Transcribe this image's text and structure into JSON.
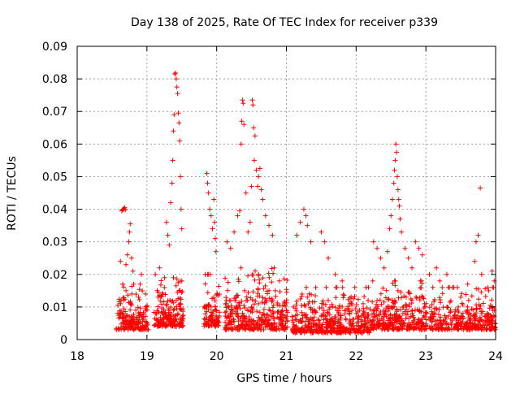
{
  "chart_data": {
    "type": "scatter",
    "title": "Day 138 of 2025, Rate Of TEC Index for receiver p339",
    "xlabel": "GPS time / hours",
    "ylabel": "ROTI / TECUs",
    "xlim": [
      18,
      24
    ],
    "ylim": [
      0,
      0.09
    ],
    "x_ticks": [
      18,
      19,
      20,
      21,
      22,
      23,
      24
    ],
    "x_tick_labels": [
      "18",
      "19",
      "20",
      "21",
      "22",
      "23",
      "24"
    ],
    "y_ticks": [
      0,
      0.01,
      0.02,
      0.03,
      0.04,
      0.05,
      0.06,
      0.07,
      0.08,
      0.09
    ],
    "y_tick_labels": [
      "0",
      "0.01",
      "0.02",
      "0.03",
      "0.04",
      "0.05",
      "0.06",
      "0.07",
      "0.08",
      "0.09"
    ],
    "grid": true,
    "marker": "+",
    "series": [
      {
        "name": "ROTI",
        "color": "#ff0000",
        "points": [
          [
            18.62,
            0.024
          ],
          [
            18.64,
            0.0395
          ],
          [
            18.65,
            0.0398
          ],
          [
            18.66,
            0.04
          ],
          [
            18.67,
            0.0402
          ],
          [
            18.68,
            0.0405
          ],
          [
            18.69,
            0.0398
          ],
          [
            18.7,
            0.023
          ],
          [
            18.72,
            0.026
          ],
          [
            18.74,
            0.03
          ],
          [
            18.75,
            0.033
          ],
          [
            18.76,
            0.0355
          ],
          [
            18.78,
            0.025
          ],
          [
            18.8,
            0.021
          ],
          [
            18.63,
            0.012
          ],
          [
            18.66,
            0.008
          ],
          [
            18.7,
            0.015
          ],
          [
            18.73,
            0.006
          ],
          [
            18.77,
            0.011
          ],
          [
            18.81,
            0.017
          ],
          [
            18.84,
            0.009
          ],
          [
            18.88,
            0.013
          ],
          [
            18.92,
            0.02
          ],
          [
            18.95,
            0.007
          ],
          [
            18.98,
            0.014
          ],
          [
            19.0,
            0.01
          ],
          [
            19.12,
            0.02
          ],
          [
            19.16,
            0.013
          ],
          [
            19.18,
            0.022
          ],
          [
            19.22,
            0.008
          ],
          [
            19.25,
            0.016
          ],
          [
            19.28,
            0.036
          ],
          [
            19.3,
            0.032
          ],
          [
            19.32,
            0.029
          ],
          [
            19.34,
            0.042
          ],
          [
            19.36,
            0.048
          ],
          [
            19.37,
            0.055
          ],
          [
            19.38,
            0.064
          ],
          [
            19.39,
            0.069
          ],
          [
            19.4,
            0.0815
          ],
          [
            19.41,
            0.0818
          ],
          [
            19.42,
            0.08
          ],
          [
            19.43,
            0.0775
          ],
          [
            19.44,
            0.0755
          ],
          [
            19.45,
            0.0695
          ],
          [
            19.46,
            0.0665
          ],
          [
            19.47,
            0.061
          ],
          [
            19.48,
            0.05
          ],
          [
            19.49,
            0.04
          ],
          [
            19.5,
            0.034
          ],
          [
            19.46,
            0.015
          ],
          [
            19.38,
            0.009
          ],
          [
            19.42,
            0.012
          ],
          [
            19.48,
            0.006
          ],
          [
            19.5,
            0.018
          ],
          [
            19.86,
            0.051
          ],
          [
            19.87,
            0.048
          ],
          [
            19.88,
            0.045
          ],
          [
            19.9,
            0.04
          ],
          [
            19.92,
            0.038
          ],
          [
            19.94,
            0.034
          ],
          [
            19.96,
            0.043
          ],
          [
            19.97,
            0.036
          ],
          [
            19.98,
            0.031
          ],
          [
            19.99,
            0.027
          ],
          [
            19.88,
            0.02
          ],
          [
            19.92,
            0.01
          ],
          [
            19.96,
            0.006
          ],
          [
            20.15,
            0.03
          ],
          [
            20.2,
            0.028
          ],
          [
            20.25,
            0.033
          ],
          [
            20.3,
            0.038
          ],
          [
            20.33,
            0.0395
          ],
          [
            20.35,
            0.06
          ],
          [
            20.36,
            0.067
          ],
          [
            20.37,
            0.0735
          ],
          [
            20.38,
            0.0725
          ],
          [
            20.39,
            0.066
          ],
          [
            20.42,
            0.045
          ],
          [
            20.45,
            0.033
          ],
          [
            20.48,
            0.036
          ],
          [
            20.5,
            0.047
          ],
          [
            20.51,
            0.0735
          ],
          [
            20.52,
            0.072
          ],
          [
            20.53,
            0.065
          ],
          [
            20.54,
            0.055
          ],
          [
            20.55,
            0.0625
          ],
          [
            20.57,
            0.052
          ],
          [
            20.59,
            0.047
          ],
          [
            20.6,
            0.05
          ],
          [
            20.62,
            0.0525
          ],
          [
            20.64,
            0.046
          ],
          [
            20.66,
            0.043
          ],
          [
            20.7,
            0.038
          ],
          [
            20.75,
            0.035
          ],
          [
            20.8,
            0.032
          ],
          [
            20.2,
            0.012
          ],
          [
            20.3,
            0.008
          ],
          [
            20.4,
            0.015
          ],
          [
            20.5,
            0.01
          ],
          [
            20.6,
            0.02
          ],
          [
            20.7,
            0.006
          ],
          [
            20.8,
            0.012
          ],
          [
            20.9,
            0.018
          ],
          [
            21.0,
            0.009
          ],
          [
            21.15,
            0.032
          ],
          [
            21.2,
            0.036
          ],
          [
            21.25,
            0.04
          ],
          [
            21.28,
            0.038
          ],
          [
            21.3,
            0.035
          ],
          [
            21.35,
            0.03
          ],
          [
            21.5,
            0.033
          ],
          [
            21.55,
            0.03
          ],
          [
            21.6,
            0.025
          ],
          [
            21.7,
            0.02
          ],
          [
            21.8,
            0.018
          ],
          [
            21.1,
            0.01
          ],
          [
            21.2,
            0.006
          ],
          [
            21.3,
            0.013
          ],
          [
            21.4,
            0.009
          ],
          [
            21.5,
            0.004
          ],
          [
            21.6,
            0.012
          ],
          [
            21.7,
            0.007
          ],
          [
            21.8,
            0.01
          ],
          [
            21.9,
            0.005
          ],
          [
            22.0,
            0.008
          ],
          [
            22.1,
            0.011
          ],
          [
            22.2,
            0.006
          ],
          [
            22.25,
            0.03
          ],
          [
            22.3,
            0.028
          ],
          [
            22.35,
            0.025
          ],
          [
            22.4,
            0.022
          ],
          [
            22.45,
            0.027
          ],
          [
            22.48,
            0.034
          ],
          [
            22.5,
            0.038
          ],
          [
            22.52,
            0.043
          ],
          [
            22.54,
            0.048
          ],
          [
            22.55,
            0.052
          ],
          [
            22.56,
            0.055
          ],
          [
            22.57,
            0.06
          ],
          [
            22.58,
            0.0575
          ],
          [
            22.59,
            0.05
          ],
          [
            22.6,
            0.046
          ],
          [
            22.61,
            0.043
          ],
          [
            22.62,
            0.041
          ],
          [
            22.63,
            0.037
          ],
          [
            22.65,
            0.033
          ],
          [
            22.7,
            0.028
          ],
          [
            22.75,
            0.025
          ],
          [
            22.8,
            0.022
          ],
          [
            22.85,
            0.03
          ],
          [
            22.9,
            0.028
          ],
          [
            22.95,
            0.026
          ],
          [
            22.3,
            0.012
          ],
          [
            22.4,
            0.007
          ],
          [
            22.5,
            0.01
          ],
          [
            22.6,
            0.015
          ],
          [
            22.7,
            0.008
          ],
          [
            22.8,
            0.012
          ],
          [
            22.9,
            0.006
          ],
          [
            22.98,
            0.011
          ],
          [
            23.05,
            0.02
          ],
          [
            23.1,
            0.016
          ],
          [
            23.15,
            0.022
          ],
          [
            23.2,
            0.018
          ],
          [
            23.3,
            0.02
          ],
          [
            23.4,
            0.016
          ],
          [
            23.5,
            0.013
          ],
          [
            23.6,
            0.017
          ],
          [
            23.7,
            0.024
          ],
          [
            23.72,
            0.03
          ],
          [
            23.75,
            0.032
          ],
          [
            23.78,
            0.0465
          ],
          [
            23.8,
            0.02
          ],
          [
            23.9,
            0.015
          ],
          [
            23.95,
            0.021
          ],
          [
            23.98,
            0.018
          ],
          [
            23.1,
            0.008
          ],
          [
            23.2,
            0.006
          ],
          [
            23.3,
            0.01
          ],
          [
            23.4,
            0.007
          ],
          [
            23.5,
            0.005
          ],
          [
            23.6,
            0.009
          ],
          [
            23.7,
            0.006
          ],
          [
            23.8,
            0.008
          ],
          [
            23.9,
            0.005
          ],
          [
            23.98,
            0.009
          ]
        ],
        "dense_bands": [
          {
            "x_range": [
              18.56,
              19.02
            ],
            "y_range": [
              0.003,
              0.017
            ],
            "count": 170
          },
          {
            "x_range": [
              19.1,
              19.52
            ],
            "y_range": [
              0.004,
              0.019
            ],
            "count": 180
          },
          {
            "x_range": [
              19.82,
              20.04
            ],
            "y_range": [
              0.004,
              0.02
            ],
            "count": 90
          },
          {
            "x_range": [
              20.12,
              21.02
            ],
            "y_range": [
              0.003,
              0.022
            ],
            "count": 360
          },
          {
            "x_range": [
              21.08,
              22.22
            ],
            "y_range": [
              0.002,
              0.016
            ],
            "count": 420
          },
          {
            "x_range": [
              22.22,
              23.02
            ],
            "y_range": [
              0.003,
              0.018
            ],
            "count": 300
          },
          {
            "x_range": [
              23.05,
              24.0
            ],
            "y_range": [
              0.003,
              0.016
            ],
            "count": 320
          }
        ]
      }
    ]
  }
}
